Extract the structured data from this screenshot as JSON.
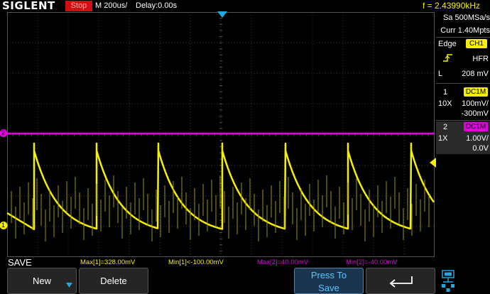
{
  "header": {
    "brand": "SIGLENT",
    "run_state": "Stop",
    "timebase": "M 200us/",
    "delay": "Delay:0.00s",
    "frequency": "f = 2.43990kHz"
  },
  "side_panel": {
    "sample_rate": "Sa 500MSa/s",
    "memory": "Curr 1.40Mpts",
    "trigger": {
      "type": "Edge",
      "source": "CH1",
      "coupling": "HFR",
      "level_label": "L",
      "level": "208 mV"
    },
    "ch1": {
      "number": "1",
      "coupling": "DC1M",
      "probe": "10X",
      "scale": "100mV/",
      "offset": "-300mV"
    },
    "ch2": {
      "number": "2",
      "coupling": "DC1M",
      "probe": "1X",
      "scale": "1.00V/",
      "offset": "0.0V"
    }
  },
  "measurements": {
    "mode": "SAVE",
    "items": [
      {
        "label": "Max[1]=328.00mV",
        "color": "#f5f000"
      },
      {
        "label": "Min[1]<-100.00mV",
        "color": "#f5f000"
      },
      {
        "label": "Max[2]=40.00mV",
        "color": "#e000e0"
      },
      {
        "label": "Min[2]=-40.00mV",
        "color": "#e000e0"
      }
    ]
  },
  "softkeys": {
    "new": "New",
    "delete": "Delete",
    "press_to": "Press To",
    "save": "Save"
  },
  "markers": {
    "ch1": "1",
    "ch2": "2"
  },
  "colors": {
    "ch1": "#f5f000",
    "ch2": "#e000e0",
    "accent": "#1fa7e0"
  }
}
